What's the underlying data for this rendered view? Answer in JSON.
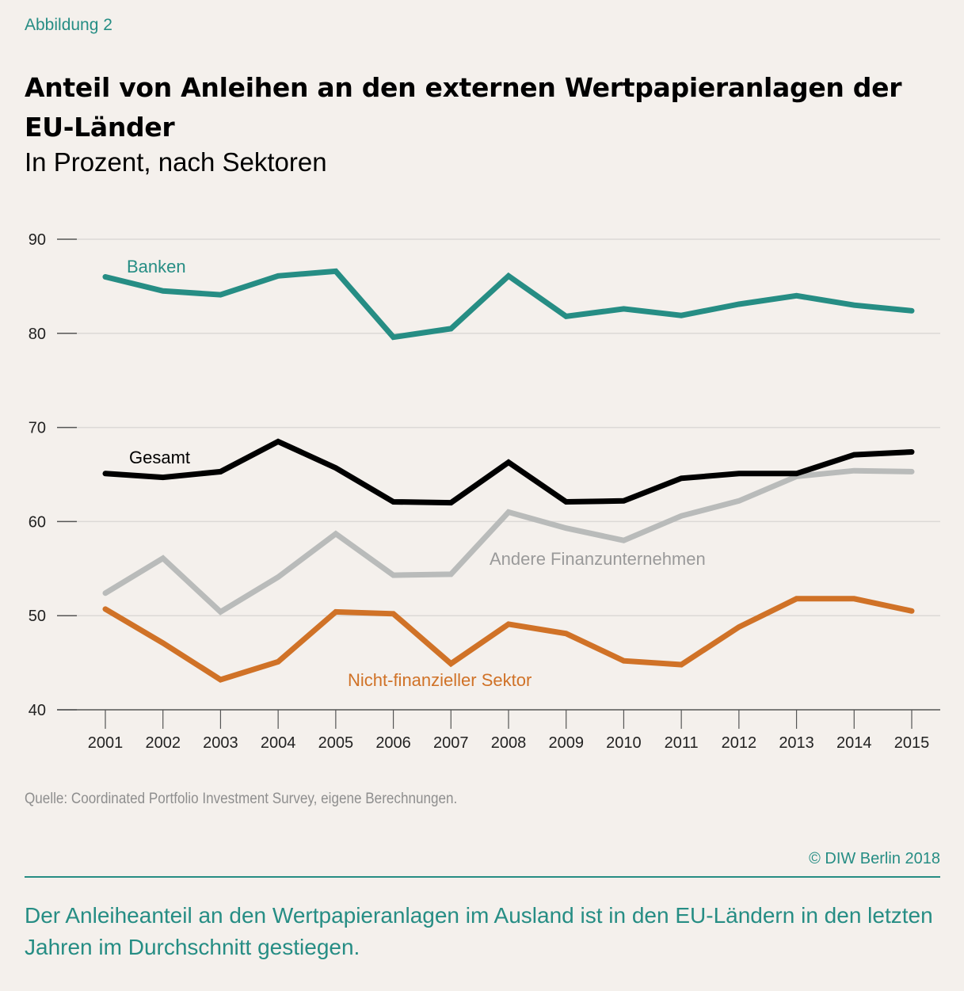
{
  "figure_label": "Abbildung 2",
  "title": "Anteil von Anleihen an den externen Wertpapieranlagen der EU-Länder",
  "subtitle": "In Prozent, nach Sektoren",
  "source": "Quelle: Coordinated Portfolio Investment Survey, eigene Berechnungen.",
  "copyright": "© DIW Berlin 2018",
  "caption": "Der Anleiheanteil an den Wertpapieranlagen im Ausland ist in den EU-Ländern in den letzten Jahren im Durchschnitt gestiegen.",
  "colors": {
    "background": "#f4f0ec",
    "accent": "#268d84",
    "gridline": "#dcd9d6",
    "axis": "#555555"
  },
  "chart_data": {
    "type": "line",
    "title": "Anteil von Anleihen an den externen Wertpapieranlagen der EU-Länder",
    "subtitle": "In Prozent, nach Sektoren",
    "xlabel": "",
    "ylabel": "",
    "ylim": [
      40,
      90
    ],
    "yticks": [
      40,
      50,
      60,
      70,
      80,
      90
    ],
    "grid": true,
    "legend": "inline-labels",
    "x": [
      "2001",
      "2002",
      "2003",
      "2004",
      "2005",
      "2006",
      "2007",
      "2008",
      "2009",
      "2010",
      "2011",
      "2012",
      "2013",
      "2014",
      "2015"
    ],
    "series": [
      {
        "name": "Banken",
        "color": "#268d84",
        "values": [
          86.0,
          84.5,
          84.1,
          86.1,
          86.6,
          79.6,
          80.5,
          86.1,
          81.8,
          82.6,
          81.9,
          83.1,
          84.0,
          83.0,
          82.4
        ]
      },
      {
        "name": "Gesamt",
        "color": "#000000",
        "values": [
          65.1,
          64.7,
          65.3,
          68.5,
          65.7,
          62.1,
          62.0,
          66.3,
          62.1,
          62.2,
          64.6,
          65.1,
          65.1,
          67.1,
          67.4
        ]
      },
      {
        "name": "Andere Finanzunternehmen",
        "color": "#b9bbba",
        "values": [
          52.4,
          56.1,
          50.4,
          54.1,
          58.7,
          54.3,
          54.4,
          61.0,
          59.3,
          58.0,
          60.6,
          62.2,
          64.8,
          65.4,
          65.3
        ]
      },
      {
        "name": "Nicht-finanzieller Sektor",
        "color": "#d07227",
        "values": [
          50.7,
          47.1,
          43.2,
          45.1,
          50.4,
          50.2,
          44.9,
          49.1,
          48.1,
          45.2,
          44.8,
          48.8,
          51.8,
          51.8,
          50.5
        ]
      }
    ]
  }
}
